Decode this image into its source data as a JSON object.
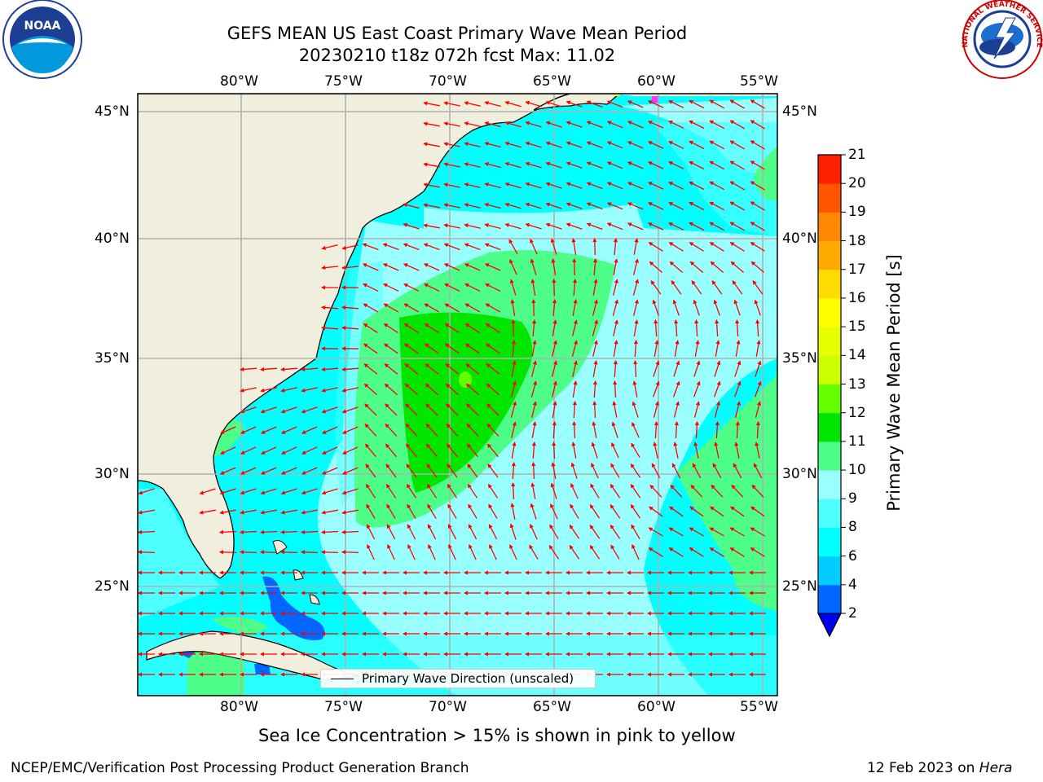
{
  "title": {
    "line1": "GEFS MEAN US East Coast Primary Wave Mean Period",
    "line2": "20230210 t18z 072h fcst   Max: 11.02"
  },
  "map": {
    "lon_labels": [
      "80°W",
      "75°W",
      "70°W",
      "65°W",
      "60°W",
      "55°W"
    ],
    "lat_labels": [
      "45°N",
      "40°N",
      "35°N",
      "30°N",
      "25°N"
    ],
    "colors": {
      "ocean_base": "#00ffff",
      "land": "#f0eedc",
      "grid": "#b0b0b0",
      "arrow": "#ff0000"
    },
    "legend_label": "Primary Wave Direction (unscaled)"
  },
  "colorbar": {
    "label": "Primary Wave Mean Period [s]",
    "ticks": [
      "2",
      "4",
      "6",
      "8",
      "9",
      "10",
      "11",
      "12",
      "13",
      "14",
      "15",
      "16",
      "17",
      "18",
      "19",
      "20",
      "21"
    ],
    "colors": [
      "#0066ff",
      "#00ccff",
      "#00ffff",
      "#4dffff",
      "#99ffff",
      "#4dff88",
      "#00e600",
      "#66ff00",
      "#ccff00",
      "#e6ff00",
      "#ffff00",
      "#ffdd00",
      "#ffaa00",
      "#ff8800",
      "#ff5500",
      "#ff2200"
    ],
    "extend_color": "#0000ee"
  },
  "footnote": "Sea Ice Concentration > 15% is shown in pink to yellow",
  "footer": {
    "left": "NCEP/EMC/Verification Post Processing Product Generation Branch",
    "right_date": "12 Feb 2023 on ",
    "right_host": "Hera"
  },
  "logos": {
    "left_icon": "noaa-logo-icon",
    "right_icon": "nws-logo-icon"
  }
}
